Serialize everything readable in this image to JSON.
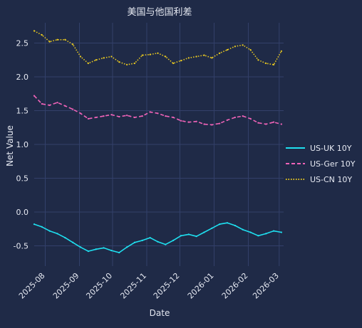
{
  "chart_data": {
    "type": "line",
    "title": "美国与他国利差",
    "xlabel": "Date",
    "ylabel": "Net Value",
    "x_start": "2025-07-22",
    "x_end": "2026-03-05",
    "x_ticks": [
      "2025-08",
      "2025-09",
      "2025-10",
      "2025-11",
      "2025-12",
      "2026-01",
      "2026-02",
      "2026-03"
    ],
    "ylim": [
      -0.8,
      2.8
    ],
    "y_ticks": [
      -0.5,
      0.0,
      0.5,
      1.0,
      1.5,
      2.0,
      2.5
    ],
    "y_tick_labels": [
      "-0.5",
      "0.0",
      "0.5",
      "1.0",
      "1.5",
      "2.0",
      "2.5"
    ],
    "grid": true,
    "legend_position": "center-right",
    "series": [
      {
        "name": "US-UK 10Y",
        "color": "#1fe0f0",
        "style": "solid",
        "x": [
          "2025-07-22",
          "2025-07-29",
          "2025-08-05",
          "2025-08-12",
          "2025-08-19",
          "2025-08-26",
          "2025-09-02",
          "2025-09-09",
          "2025-09-16",
          "2025-09-23",
          "2025-09-30",
          "2025-10-07",
          "2025-10-14",
          "2025-10-21",
          "2025-10-28",
          "2025-11-04",
          "2025-11-11",
          "2025-11-18",
          "2025-11-25",
          "2025-12-02",
          "2025-12-09",
          "2025-12-16",
          "2025-12-23",
          "2025-12-30",
          "2026-01-06",
          "2026-01-13",
          "2026-01-20",
          "2026-01-27",
          "2026-02-03",
          "2026-02-10",
          "2026-02-17",
          "2026-02-24",
          "2026-03-03"
        ],
        "values": [
          -0.18,
          -0.22,
          -0.28,
          -0.32,
          -0.38,
          -0.45,
          -0.52,
          -0.58,
          -0.55,
          -0.53,
          -0.57,
          -0.6,
          -0.52,
          -0.45,
          -0.42,
          -0.38,
          -0.44,
          -0.48,
          -0.42,
          -0.35,
          -0.33,
          -0.36,
          -0.3,
          -0.24,
          -0.18,
          -0.16,
          -0.2,
          -0.26,
          -0.3,
          -0.35,
          -0.32,
          -0.28,
          -0.3
        ]
      },
      {
        "name": "US-Ger 10Y",
        "color": "#f063b8",
        "style": "dashed",
        "x": [
          "2025-07-22",
          "2025-07-29",
          "2025-08-05",
          "2025-08-12",
          "2025-08-19",
          "2025-08-26",
          "2025-09-02",
          "2025-09-09",
          "2025-09-16",
          "2025-09-23",
          "2025-09-30",
          "2025-10-07",
          "2025-10-14",
          "2025-10-21",
          "2025-10-28",
          "2025-11-04",
          "2025-11-11",
          "2025-11-18",
          "2025-11-25",
          "2025-12-02",
          "2025-12-09",
          "2025-12-16",
          "2025-12-23",
          "2025-12-30",
          "2026-01-06",
          "2026-01-13",
          "2026-01-20",
          "2026-01-27",
          "2026-02-03",
          "2026-02-10",
          "2026-02-17",
          "2026-02-24",
          "2026-03-03"
        ],
        "values": [
          1.72,
          1.6,
          1.58,
          1.62,
          1.57,
          1.52,
          1.46,
          1.38,
          1.4,
          1.42,
          1.44,
          1.41,
          1.43,
          1.4,
          1.42,
          1.48,
          1.46,
          1.42,
          1.4,
          1.35,
          1.33,
          1.34,
          1.3,
          1.29,
          1.31,
          1.36,
          1.4,
          1.42,
          1.38,
          1.32,
          1.3,
          1.33,
          1.3
        ]
      },
      {
        "name": "US-CN 10Y",
        "color": "#e8c820",
        "style": "dotted",
        "x": [
          "2025-07-22",
          "2025-07-29",
          "2025-08-05",
          "2025-08-12",
          "2025-08-19",
          "2025-08-26",
          "2025-09-02",
          "2025-09-09",
          "2025-09-16",
          "2025-09-23",
          "2025-09-30",
          "2025-10-07",
          "2025-10-14",
          "2025-10-21",
          "2025-10-28",
          "2025-11-04",
          "2025-11-11",
          "2025-11-18",
          "2025-11-25",
          "2025-12-02",
          "2025-12-09",
          "2025-12-16",
          "2025-12-23",
          "2025-12-30",
          "2026-01-06",
          "2026-01-13",
          "2026-01-20",
          "2026-01-27",
          "2026-02-03",
          "2026-02-10",
          "2026-02-17",
          "2026-02-24",
          "2026-03-03"
        ],
        "values": [
          2.68,
          2.62,
          2.52,
          2.55,
          2.55,
          2.48,
          2.3,
          2.2,
          2.25,
          2.28,
          2.3,
          2.22,
          2.18,
          2.2,
          2.32,
          2.33,
          2.35,
          2.3,
          2.2,
          2.24,
          2.28,
          2.3,
          2.32,
          2.28,
          2.35,
          2.4,
          2.45,
          2.47,
          2.4,
          2.25,
          2.2,
          2.18,
          2.38
        ]
      }
    ]
  }
}
